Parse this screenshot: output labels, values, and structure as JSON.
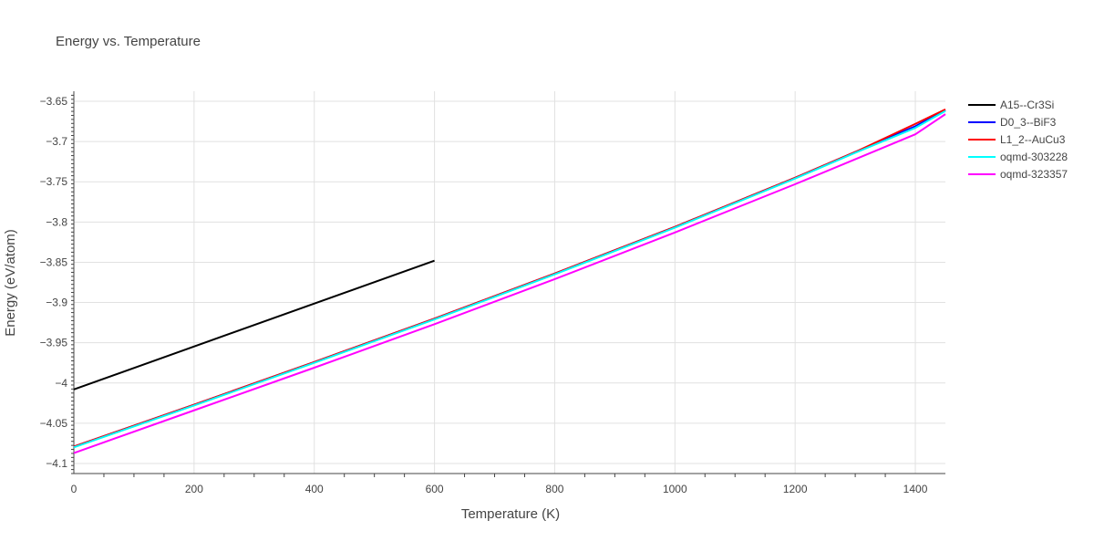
{
  "chart_data": {
    "type": "line",
    "title": "Energy vs. Temperature",
    "xlabel": "Temperature (K)",
    "ylabel": "Energy (eV/atom)",
    "xlim": [
      0,
      1450
    ],
    "ylim": [
      -4.1125,
      -3.6375
    ],
    "x_ticks": [
      0,
      200,
      400,
      600,
      800,
      1000,
      1200,
      1400
    ],
    "x_tick_labels": [
      "0",
      "200",
      "400",
      "600",
      "800",
      "1000",
      "1200",
      "1400"
    ],
    "y_ticks": [
      -4.1,
      -4.05,
      -4,
      -3.95,
      -3.9,
      -3.85,
      -3.8,
      -3.75,
      -3.7,
      -3.65
    ],
    "y_tick_labels": [
      "−4.1",
      "−4.05",
      "−4",
      "−3.95",
      "−3.9",
      "−3.85",
      "−3.8",
      "−3.75",
      "−3.7",
      "−3.65"
    ],
    "grid": true,
    "legend_position": "top-right",
    "series": [
      {
        "name": "A15--Cr3Si",
        "color": "#000000",
        "x": [
          0,
          600
        ],
        "y": [
          -4.008,
          -3.848
        ]
      },
      {
        "name": "D0_3--BiF3",
        "color": "#0000ff",
        "x": [
          0,
          200,
          400,
          600,
          800,
          1000,
          1200,
          1300,
          1400,
          1450
        ],
        "y": [
          -4.079,
          -4.027,
          -3.974,
          -3.92,
          -3.864,
          -3.806,
          -3.745,
          -3.713,
          -3.681,
          -3.661
        ]
      },
      {
        "name": "L1_2--AuCu3",
        "color": "#ff0000",
        "x": [
          0,
          200,
          400,
          600,
          800,
          1000,
          1200,
          1300,
          1400,
          1450
        ],
        "y": [
          -4.079,
          -4.027,
          -3.974,
          -3.92,
          -3.864,
          -3.806,
          -3.745,
          -3.713,
          -3.678,
          -3.66
        ]
      },
      {
        "name": "oqmd-303228",
        "color": "#00ffff",
        "x": [
          0,
          200,
          400,
          600,
          800,
          1000,
          1200,
          1300,
          1400,
          1450
        ],
        "y": [
          -4.08,
          -4.028,
          -3.975,
          -3.921,
          -3.865,
          -3.807,
          -3.746,
          -3.714,
          -3.683,
          -3.662
        ]
      },
      {
        "name": "oqmd-323357",
        "color": "#ff00ff",
        "x": [
          0,
          200,
          400,
          600,
          800,
          1000,
          1200,
          1300,
          1400,
          1450
        ],
        "y": [
          -4.087,
          -4.034,
          -3.981,
          -3.927,
          -3.871,
          -3.813,
          -3.753,
          -3.722,
          -3.691,
          -3.666
        ]
      }
    ]
  }
}
